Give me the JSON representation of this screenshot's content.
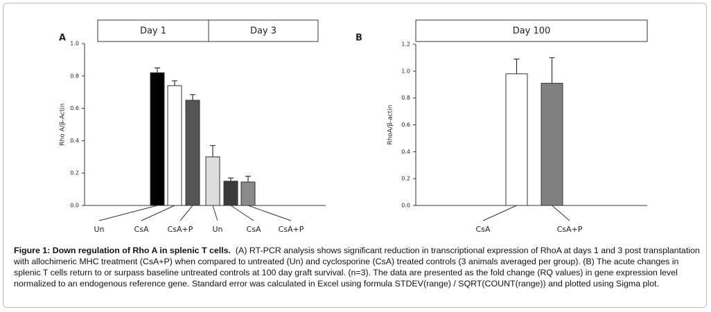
{
  "chart_data": [
    {
      "type": "bar",
      "panel": "A",
      "ylabel": "Rho A/β-Actin",
      "groups": [
        "Day 1",
        "Day 3"
      ],
      "categories": [
        "Un",
        "CsA",
        "CsA+P",
        "Un",
        "CsA",
        "CsA+P"
      ],
      "values": [
        0.82,
        0.74,
        0.65,
        0.3,
        0.15,
        0.145
      ],
      "errors": [
        0.03,
        0.03,
        0.035,
        0.07,
        0.02,
        0.035
      ],
      "colors": [
        "#000000",
        "#ffffff",
        "#555555",
        "#dddddd",
        "#3a3a3a",
        "#8a8a8a"
      ],
      "ylim": [
        0,
        1
      ],
      "yticks": [
        {
          "value": 0,
          "label": "0.0"
        },
        0.2,
        0.4,
        0.6,
        0.8,
        {
          "value": 1,
          "label": "1.0"
        }
      ]
    },
    {
      "type": "bar",
      "panel": "B",
      "ylabel": "RhoA/β-actin",
      "groups": [
        "Day 100"
      ],
      "categories": [
        "CsA",
        "CsA+P"
      ],
      "values": [
        0.98,
        0.91
      ],
      "errors": [
        0.11,
        0.19
      ],
      "colors": [
        "#ffffff",
        "#808080"
      ],
      "ylim": [
        0,
        1.2
      ],
      "yticks": [
        {
          "value": 0,
          "label": "0.0"
        },
        0.2,
        0.4,
        0.6,
        0.8,
        {
          "value": 1,
          "label": "1.0"
        },
        1.2
      ]
    }
  ],
  "caption": {
    "title": "Figure 1: Down regulation of Rho A in splenic T cells.",
    "text": "(A) RT-PCR analysis shows significant reduction in transcriptional expression of RhoA at days 1 and 3 post transplantation with allochimeric MHC treatment (CsA+P) when compared to untreated (Un) and cyclosporine (CsA) treated controls (3 animals averaged per group). (B) The acute changes in splenic T cells return to or surpass baseline untreated controls at 100 day graft survival. (n=3). The data are presented as the fold change (RQ values) in gene expression level normalized to an endogenous reference gene. Standard error was calculated in Excel using formula STDEV(range) / SQRT(COUNT(range)) and plotted using Sigma plot."
  }
}
